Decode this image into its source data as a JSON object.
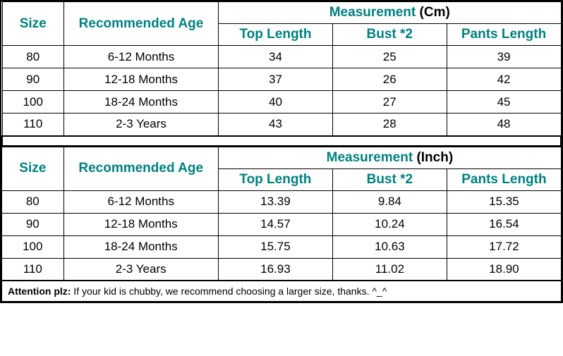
{
  "colors": {
    "header_color": "#008080",
    "border_color": "#000000",
    "text_color": "#000000",
    "background": "#ffffff"
  },
  "typography": {
    "main_font": "Comic Sans MS",
    "header_fontsize": 19,
    "data_fontsize": 17,
    "attention_font": "Arial",
    "attention_fontsize": 14
  },
  "tables": [
    {
      "unit": "Cm",
      "headers": {
        "size": "Size",
        "age": "Recommended Age",
        "measurement": "Measurement",
        "top_length": "Top Length",
        "bust": "Bust *2",
        "pants_length": "Pants Length"
      },
      "rows": [
        {
          "size": "80",
          "age": "6-12 Months",
          "top_length": "34",
          "bust": "25",
          "pants_length": "39"
        },
        {
          "size": "90",
          "age": "12-18 Months",
          "top_length": "37",
          "bust": "26",
          "pants_length": "42"
        },
        {
          "size": "100",
          "age": "18-24 Months",
          "top_length": "40",
          "bust": "27",
          "pants_length": "45"
        },
        {
          "size": "110",
          "age": "2-3 Years",
          "top_length": "43",
          "bust": "28",
          "pants_length": "48"
        }
      ]
    },
    {
      "unit": "Inch",
      "headers": {
        "size": "Size",
        "age": "Recommended Age",
        "measurement": "Measurement",
        "top_length": "Top Length",
        "bust": "Bust *2",
        "pants_length": "Pants Length"
      },
      "rows": [
        {
          "size": "80",
          "age": "6-12 Months",
          "top_length": "13.39",
          "bust": "9.84",
          "pants_length": "15.35"
        },
        {
          "size": "90",
          "age": "12-18 Months",
          "top_length": "14.57",
          "bust": "10.24",
          "pants_length": "16.54"
        },
        {
          "size": "100",
          "age": "18-24 Months",
          "top_length": "15.75",
          "bust": "10.63",
          "pants_length": "17.72"
        },
        {
          "size": "110",
          "age": "2-3 Years",
          "top_length": "16.93",
          "bust": "11.02",
          "pants_length": "18.90"
        }
      ]
    }
  ],
  "attention": {
    "label": "Attention plz:",
    "text": " If your kid is chubby, we recommend choosing a larger size, thanks. ^_^"
  }
}
